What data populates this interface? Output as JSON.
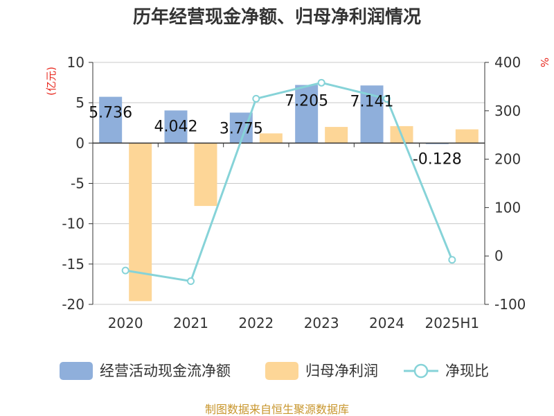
{
  "chart_data": {
    "type": "bar",
    "title": "历年经营现金净额、归母净利润情况",
    "categories": [
      "2020",
      "2021",
      "2022",
      "2023",
      "2024",
      "2025H1"
    ],
    "left_axis": {
      "unit": "(亿元)",
      "ylim": [
        -20,
        10
      ],
      "ticks": [
        10,
        5,
        0,
        -5,
        -10,
        -15,
        -20
      ]
    },
    "right_axis": {
      "unit": "%",
      "ylim": [
        -100,
        400
      ],
      "ticks": [
        400,
        300,
        200,
        100,
        0,
        -100
      ]
    },
    "series": [
      {
        "name": "经营活动现金流净额",
        "kind": "bar",
        "axis": "left",
        "color": "#8fafdb",
        "values": [
          5.736,
          4.042,
          3.775,
          7.205,
          7.141,
          -0.128
        ],
        "labels": [
          "5.736",
          "4.042",
          "3.775",
          "7.205",
          "7.141",
          "-0.128"
        ]
      },
      {
        "name": "归母净利润",
        "kind": "bar",
        "axis": "left",
        "color": "#fdd697",
        "values": [
          -19.6,
          -7.8,
          1.2,
          2.0,
          2.1,
          1.7
        ]
      },
      {
        "name": "净现比",
        "kind": "line",
        "axis": "right",
        "color": "#86d3d8",
        "values": [
          -30,
          -52,
          325,
          358,
          325,
          -8
        ]
      }
    ],
    "grid": true,
    "legend_position": "bottom",
    "source": "制图数据来自恒生聚源数据库"
  }
}
